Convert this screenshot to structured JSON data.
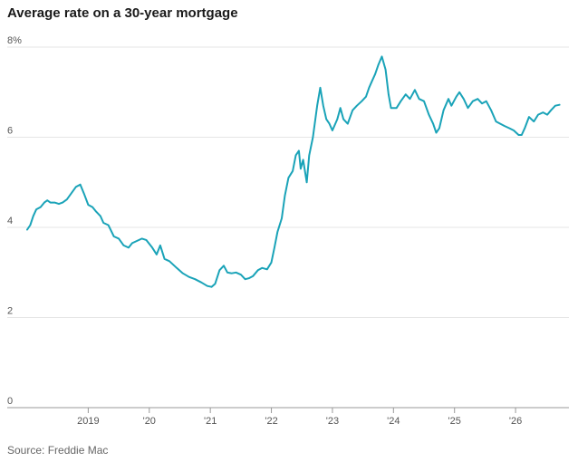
{
  "chart_data": {
    "type": "line",
    "title": "Average rate on a 30-year mortgage",
    "source": "Source: Freddie Mac",
    "xlabel": "",
    "ylabel": "",
    "ylim": [
      0,
      8
    ],
    "xlim": [
      2018.0,
      2026.8
    ],
    "y_ticks": [
      {
        "value": 8,
        "label": "8%"
      },
      {
        "value": 6,
        "label": "6"
      },
      {
        "value": 4,
        "label": "4"
      },
      {
        "value": 2,
        "label": "2"
      },
      {
        "value": 0,
        "label": "0"
      }
    ],
    "x_ticks": [
      {
        "value": 2019.0,
        "label": "2019"
      },
      {
        "value": 2020.0,
        "label": "'20"
      },
      {
        "value": 2021.0,
        "label": "'21"
      },
      {
        "value": 2022.0,
        "label": "'22"
      },
      {
        "value": 2023.0,
        "label": "'23"
      },
      {
        "value": 2024.0,
        "label": "'24"
      },
      {
        "value": 2025.0,
        "label": "'25"
      },
      {
        "value": 2026.0,
        "label": "'26"
      }
    ],
    "grid": true,
    "colors": {
      "line": "#1aa3b8",
      "grid": "#e6e6e6",
      "axis": "#999999"
    },
    "series": [
      {
        "values": [
          [
            2018.0,
            3.95
          ],
          [
            2018.05,
            4.05
          ],
          [
            2018.1,
            4.25
          ],
          [
            2018.15,
            4.4
          ],
          [
            2018.22,
            4.45
          ],
          [
            2018.28,
            4.55
          ],
          [
            2018.33,
            4.6
          ],
          [
            2018.38,
            4.55
          ],
          [
            2018.45,
            4.55
          ],
          [
            2018.52,
            4.52
          ],
          [
            2018.58,
            4.55
          ],
          [
            2018.65,
            4.62
          ],
          [
            2018.72,
            4.75
          ],
          [
            2018.8,
            4.9
          ],
          [
            2018.87,
            4.95
          ],
          [
            2018.93,
            4.75
          ],
          [
            2019.0,
            4.5
          ],
          [
            2019.07,
            4.45
          ],
          [
            2019.13,
            4.35
          ],
          [
            2019.2,
            4.25
          ],
          [
            2019.25,
            4.1
          ],
          [
            2019.33,
            4.05
          ],
          [
            2019.42,
            3.8
          ],
          [
            2019.5,
            3.75
          ],
          [
            2019.58,
            3.6
          ],
          [
            2019.66,
            3.55
          ],
          [
            2019.72,
            3.65
          ],
          [
            2019.8,
            3.7
          ],
          [
            2019.88,
            3.75
          ],
          [
            2019.95,
            3.72
          ],
          [
            2020.05,
            3.55
          ],
          [
            2020.12,
            3.4
          ],
          [
            2020.18,
            3.6
          ],
          [
            2020.25,
            3.3
          ],
          [
            2020.33,
            3.25
          ],
          [
            2020.45,
            3.1
          ],
          [
            2020.55,
            2.98
          ],
          [
            2020.65,
            2.9
          ],
          [
            2020.75,
            2.85
          ],
          [
            2020.85,
            2.78
          ],
          [
            2020.95,
            2.7
          ],
          [
            2021.02,
            2.68
          ],
          [
            2021.08,
            2.75
          ],
          [
            2021.15,
            3.05
          ],
          [
            2021.22,
            3.15
          ],
          [
            2021.28,
            3.0
          ],
          [
            2021.35,
            2.98
          ],
          [
            2021.42,
            3.0
          ],
          [
            2021.5,
            2.95
          ],
          [
            2021.57,
            2.85
          ],
          [
            2021.63,
            2.87
          ],
          [
            2021.7,
            2.92
          ],
          [
            2021.78,
            3.05
          ],
          [
            2021.85,
            3.1
          ],
          [
            2021.93,
            3.07
          ],
          [
            2022.0,
            3.22
          ],
          [
            2022.05,
            3.55
          ],
          [
            2022.1,
            3.9
          ],
          [
            2022.17,
            4.2
          ],
          [
            2022.22,
            4.7
          ],
          [
            2022.28,
            5.1
          ],
          [
            2022.35,
            5.25
          ],
          [
            2022.4,
            5.6
          ],
          [
            2022.45,
            5.7
          ],
          [
            2022.48,
            5.3
          ],
          [
            2022.52,
            5.5
          ],
          [
            2022.58,
            5.0
          ],
          [
            2022.62,
            5.6
          ],
          [
            2022.68,
            6.0
          ],
          [
            2022.75,
            6.7
          ],
          [
            2022.8,
            7.1
          ],
          [
            2022.85,
            6.7
          ],
          [
            2022.9,
            6.4
          ],
          [
            2022.95,
            6.3
          ],
          [
            2023.0,
            6.15
          ],
          [
            2023.08,
            6.4
          ],
          [
            2023.13,
            6.65
          ],
          [
            2023.18,
            6.4
          ],
          [
            2023.25,
            6.3
          ],
          [
            2023.33,
            6.6
          ],
          [
            2023.4,
            6.7
          ],
          [
            2023.48,
            6.8
          ],
          [
            2023.55,
            6.9
          ],
          [
            2023.6,
            7.1
          ],
          [
            2023.65,
            7.25
          ],
          [
            2023.7,
            7.4
          ],
          [
            2023.75,
            7.6
          ],
          [
            2023.81,
            7.79
          ],
          [
            2023.87,
            7.5
          ],
          [
            2023.92,
            6.95
          ],
          [
            2023.96,
            6.65
          ],
          [
            2024.05,
            6.65
          ],
          [
            2024.12,
            6.8
          ],
          [
            2024.2,
            6.95
          ],
          [
            2024.27,
            6.85
          ],
          [
            2024.35,
            7.05
          ],
          [
            2024.42,
            6.85
          ],
          [
            2024.5,
            6.8
          ],
          [
            2024.58,
            6.5
          ],
          [
            2024.65,
            6.3
          ],
          [
            2024.7,
            6.1
          ],
          [
            2024.75,
            6.2
          ],
          [
            2024.82,
            6.6
          ],
          [
            2024.9,
            6.85
          ],
          [
            2024.95,
            6.7
          ],
          [
            2025.03,
            6.9
          ],
          [
            2025.08,
            7.0
          ],
          [
            2025.15,
            6.85
          ],
          [
            2025.22,
            6.65
          ],
          [
            2025.3,
            6.8
          ],
          [
            2025.38,
            6.85
          ],
          [
            2025.45,
            6.75
          ],
          [
            2025.52,
            6.8
          ],
          [
            2025.6,
            6.6
          ],
          [
            2025.68,
            6.35
          ],
          [
            2025.75,
            6.3
          ],
          [
            2025.82,
            6.25
          ],
          [
            2025.9,
            6.2
          ],
          [
            2025.97,
            6.15
          ],
          [
            2026.05,
            6.05
          ],
          [
            2026.1,
            6.05
          ],
          [
            2026.15,
            6.2
          ],
          [
            2026.22,
            6.45
          ],
          [
            2026.3,
            6.35
          ],
          [
            2026.37,
            6.5
          ],
          [
            2026.45,
            6.55
          ],
          [
            2026.52,
            6.5
          ],
          [
            2026.58,
            6.6
          ],
          [
            2026.65,
            6.7
          ],
          [
            2026.72,
            6.72
          ]
        ]
      }
    ]
  }
}
